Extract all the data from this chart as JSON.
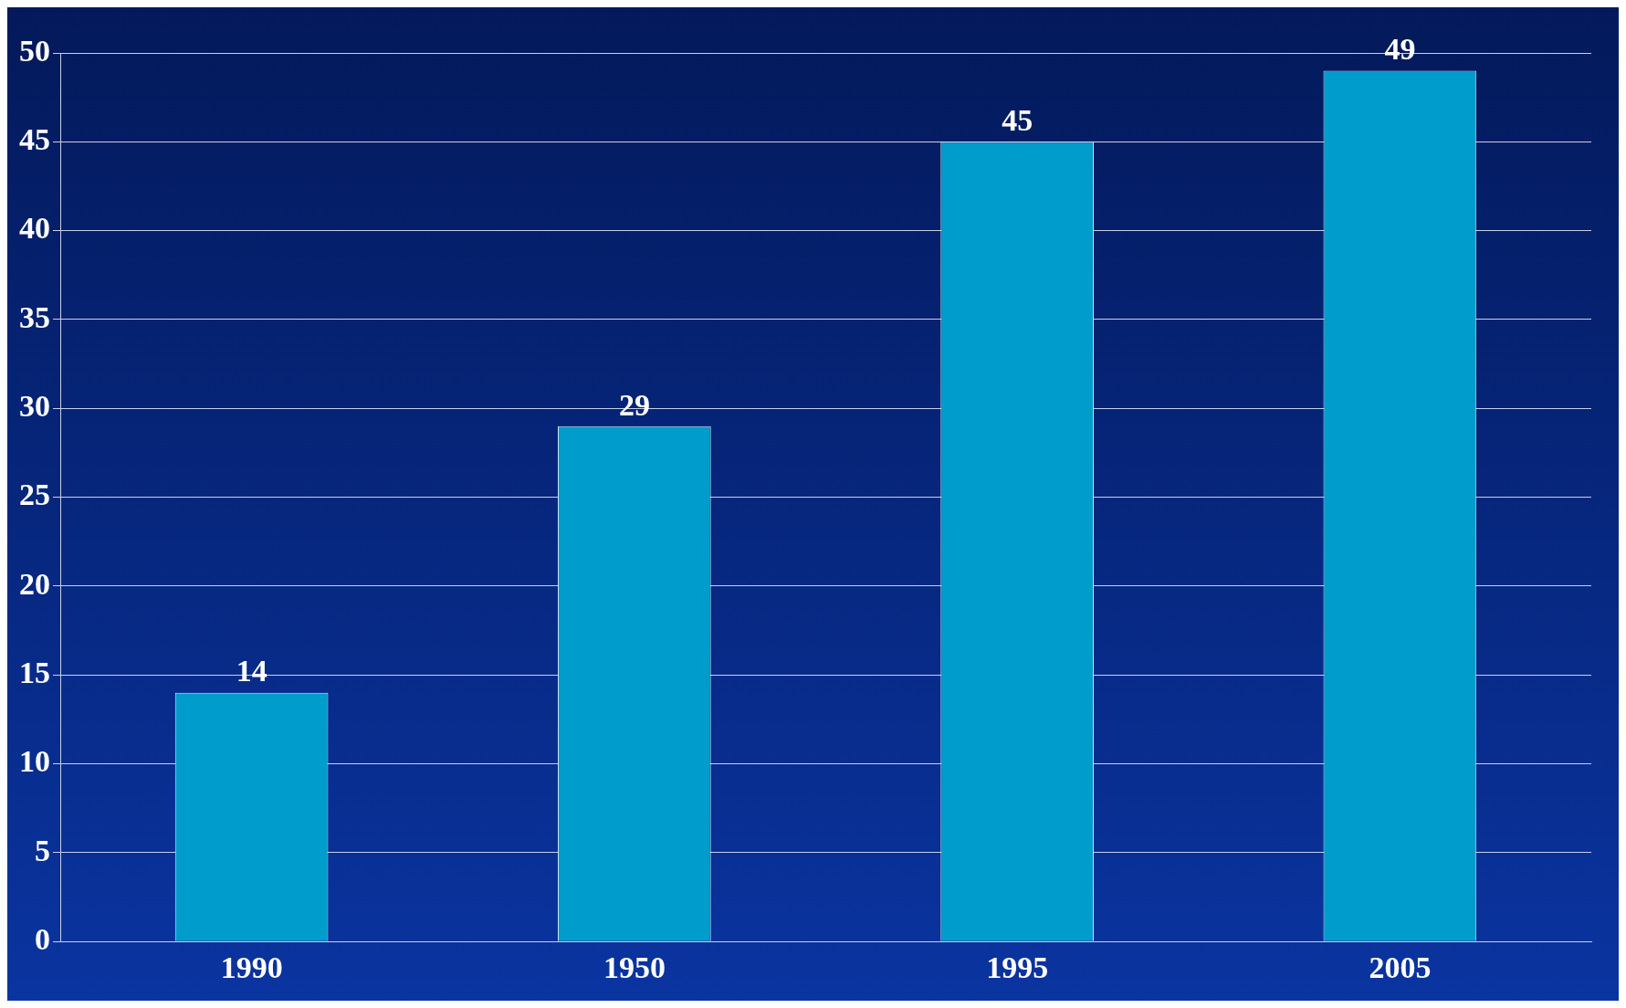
{
  "chart_data": {
    "type": "bar",
    "categories": [
      "1990",
      "1950",
      "1995",
      "2005"
    ],
    "values": [
      14,
      29,
      45,
      49
    ],
    "color": "#009ccc",
    "ylim": [
      0,
      50
    ],
    "yticks": [
      0,
      5,
      10,
      15,
      20,
      25,
      30,
      35,
      40,
      45,
      50
    ],
    "grid": "y",
    "data_labels": true,
    "legend": false
  }
}
